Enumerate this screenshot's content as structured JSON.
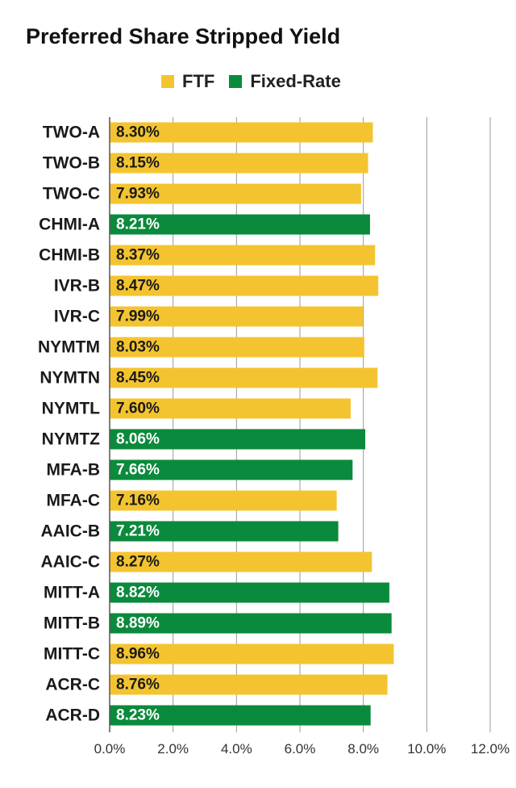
{
  "chart_data": {
    "type": "bar",
    "orientation": "horizontal",
    "title": "Preferred Share Stripped Yield",
    "legend": [
      {
        "name": "FTF",
        "color": "#F4C430"
      },
      {
        "name": "Fixed-Rate",
        "color": "#0A8A3C"
      }
    ],
    "legend_position": "top",
    "categories": [
      "TWO-A",
      "TWO-B",
      "TWO-C",
      "CHMI-A",
      "CHMI-B",
      "IVR-B",
      "IVR-C",
      "NYMTM",
      "NYMTN",
      "NYMTL",
      "NYMTZ",
      "MFA-B",
      "MFA-C",
      "AAIC-B",
      "AAIC-C",
      "MITT-A",
      "MITT-B",
      "MITT-C",
      "ACR-C",
      "ACR-D"
    ],
    "values": [
      8.3,
      8.15,
      7.93,
      8.21,
      8.37,
      8.47,
      7.99,
      8.03,
      8.45,
      7.6,
      8.06,
      7.66,
      7.16,
      7.21,
      8.27,
      8.82,
      8.89,
      8.96,
      8.76,
      8.23
    ],
    "value_labels": [
      "8.30%",
      "8.15%",
      "7.93%",
      "8.21%",
      "8.37%",
      "8.47%",
      "7.99%",
      "8.03%",
      "8.45%",
      "7.60%",
      "8.06%",
      "7.66%",
      "7.16%",
      "7.21%",
      "8.27%",
      "8.82%",
      "8.89%",
      "8.96%",
      "8.76%",
      "8.23%"
    ],
    "series_assignment": [
      "FTF",
      "FTF",
      "FTF",
      "Fixed-Rate",
      "FTF",
      "FTF",
      "FTF",
      "FTF",
      "FTF",
      "FTF",
      "Fixed-Rate",
      "Fixed-Rate",
      "FTF",
      "Fixed-Rate",
      "FTF",
      "Fixed-Rate",
      "Fixed-Rate",
      "FTF",
      "FTF",
      "Fixed-Rate"
    ],
    "xlim": [
      0,
      12
    ],
    "xticks": [
      0,
      2,
      4,
      6,
      8,
      10,
      12
    ],
    "xtick_labels": [
      "0.0%",
      "2.0%",
      "4.0%",
      "6.0%",
      "8.0%",
      "10.0%",
      "12.0%"
    ],
    "grid": "vertical",
    "value_label_colors": {
      "FTF": "#1a1a1a",
      "Fixed-Rate": "#ffffff"
    },
    "grid_color": "#9a9a9a",
    "axis_color": "#555555"
  }
}
